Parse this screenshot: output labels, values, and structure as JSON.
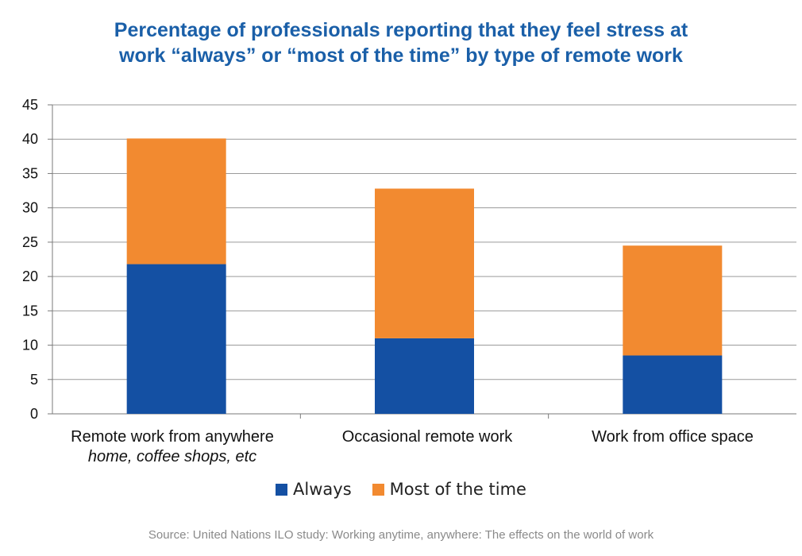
{
  "title_line1": "Percentage of professionals reporting that they feel stress at",
  "title_line2": "work “always” or “most of the time” by type of remote work",
  "source": "Source: United Nations ILO study: Working anytime, anywhere: The effects on the world of work",
  "colors": {
    "always": "#1450a3",
    "most": "#f28a30",
    "title": "#1a5fa8"
  },
  "chart_data": {
    "type": "bar",
    "stacked": true,
    "categories": [
      "Remote work from anywhere",
      "Occasional remote work",
      "Work from office space"
    ],
    "category_sublabels": [
      "home, coffee shops, etc",
      "",
      ""
    ],
    "series": [
      {
        "name": "Always",
        "values": [
          21.8,
          11.0,
          8.5
        ]
      },
      {
        "name": "Most of the time",
        "values": [
          18.3,
          21.8,
          16.0
        ]
      }
    ],
    "ylim": [
      0,
      45
    ],
    "yticks": [
      "0",
      "5",
      "10",
      "15",
      "20",
      "25",
      "30",
      "35",
      "40",
      "45"
    ],
    "grid": true,
    "legend": "bottom"
  }
}
